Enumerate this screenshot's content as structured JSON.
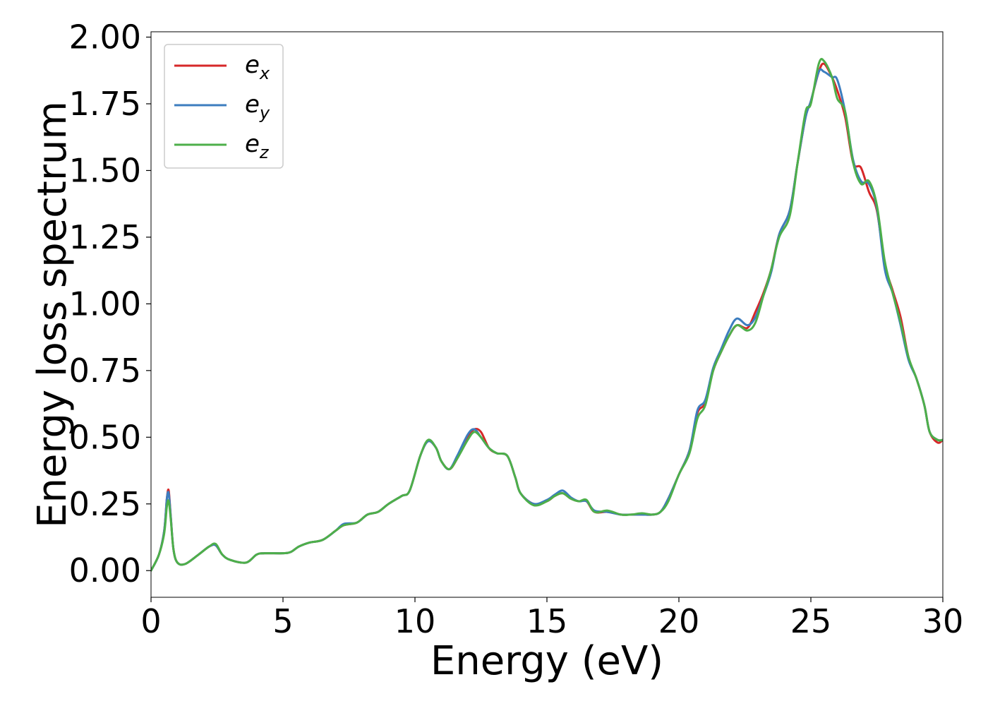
{
  "chart_data": {
    "type": "line",
    "title": "",
    "xlabel": "Energy (eV)",
    "ylabel": "Energy loss spectrum",
    "xlim": [
      0,
      30
    ],
    "ylim": [
      -0.1,
      2.02
    ],
    "xticks": [
      0,
      5,
      10,
      15,
      20,
      25,
      30
    ],
    "xtick_labels": [
      "0",
      "5",
      "10",
      "15",
      "20",
      "25",
      "30"
    ],
    "yticks": [
      0,
      0.25,
      0.5,
      0.75,
      1.0,
      1.25,
      1.5,
      1.75,
      2.0
    ],
    "ytick_labels": [
      "0.00",
      "0.25",
      "0.50",
      "0.75",
      "1.00",
      "1.25",
      "1.50",
      "1.75",
      "2.00"
    ],
    "grid": false,
    "legend_position": "top-left",
    "series": [
      {
        "name": "e_x",
        "legend_base": "e",
        "legend_sub": "x",
        "color": "#d62728",
        "x": [
          0,
          0.3,
          0.5,
          0.6,
          0.67,
          0.75,
          0.85,
          1.0,
          1.3,
          1.8,
          2.2,
          2.45,
          2.7,
          3.0,
          3.6,
          4.0,
          4.3,
          5.0,
          5.3,
          5.6,
          6.0,
          6.5,
          7.0,
          7.3,
          7.8,
          8.2,
          8.6,
          9.0,
          9.5,
          9.8,
          10.2,
          10.5,
          10.8,
          11.0,
          11.3,
          11.6,
          12.0,
          12.25,
          12.5,
          12.8,
          13.1,
          13.5,
          13.8,
          14.0,
          14.5,
          15.0,
          15.3,
          15.6,
          15.9,
          16.2,
          16.5,
          16.8,
          17.3,
          17.8,
          18.2,
          18.6,
          19.0,
          19.3,
          19.6,
          20.0,
          20.4,
          20.7,
          21.0,
          21.3,
          21.6,
          21.9,
          22.2,
          22.6,
          22.9,
          23.2,
          23.5,
          23.8,
          24.2,
          24.5,
          24.8,
          25.0,
          25.3,
          25.5,
          25.8,
          26.0,
          26.3,
          26.6,
          26.9,
          27.2,
          27.5,
          27.8,
          28.1,
          28.4,
          28.7,
          29.0,
          29.3,
          29.5,
          29.8,
          30.0
        ],
        "y": [
          0.0,
          0.06,
          0.15,
          0.27,
          0.3,
          0.2,
          0.08,
          0.03,
          0.025,
          0.06,
          0.09,
          0.095,
          0.06,
          0.04,
          0.03,
          0.06,
          0.065,
          0.065,
          0.07,
          0.09,
          0.105,
          0.115,
          0.15,
          0.17,
          0.18,
          0.21,
          0.22,
          0.25,
          0.28,
          0.3,
          0.43,
          0.485,
          0.46,
          0.41,
          0.38,
          0.42,
          0.5,
          0.53,
          0.52,
          0.46,
          0.44,
          0.43,
          0.35,
          0.29,
          0.25,
          0.26,
          0.28,
          0.29,
          0.27,
          0.26,
          0.26,
          0.22,
          0.22,
          0.21,
          0.21,
          0.21,
          0.21,
          0.22,
          0.27,
          0.36,
          0.45,
          0.59,
          0.63,
          0.75,
          0.82,
          0.88,
          0.92,
          0.91,
          0.97,
          1.04,
          1.13,
          1.26,
          1.35,
          1.53,
          1.7,
          1.76,
          1.87,
          1.9,
          1.85,
          1.8,
          1.7,
          1.53,
          1.51,
          1.42,
          1.35,
          1.15,
          1.05,
          0.95,
          0.8,
          0.72,
          0.62,
          0.52,
          0.48,
          0.49
        ]
      },
      {
        "name": "e_y",
        "legend_base": "e",
        "legend_sub": "y",
        "color": "#3c7dbf",
        "x": [
          0,
          0.3,
          0.5,
          0.6,
          0.67,
          0.75,
          0.85,
          1.0,
          1.3,
          1.8,
          2.2,
          2.45,
          2.7,
          3.0,
          3.6,
          4.0,
          4.3,
          5.0,
          5.3,
          5.6,
          6.0,
          6.5,
          7.0,
          7.3,
          7.8,
          8.2,
          8.6,
          9.0,
          9.5,
          9.8,
          10.2,
          10.5,
          10.8,
          11.0,
          11.3,
          11.6,
          12.0,
          12.25,
          12.5,
          12.8,
          13.1,
          13.5,
          13.8,
          14.0,
          14.5,
          15.0,
          15.3,
          15.6,
          15.9,
          16.2,
          16.5,
          16.8,
          17.3,
          17.8,
          18.2,
          18.6,
          19.0,
          19.3,
          19.6,
          20.0,
          20.4,
          20.7,
          21.0,
          21.3,
          21.6,
          21.9,
          22.2,
          22.6,
          22.9,
          23.2,
          23.5,
          23.8,
          24.2,
          24.5,
          24.8,
          25.0,
          25.3,
          25.5,
          25.8,
          26.0,
          26.3,
          26.6,
          26.9,
          27.2,
          27.5,
          27.8,
          28.1,
          28.4,
          28.7,
          29.0,
          29.3,
          29.5,
          29.8,
          30.0
        ],
        "y": [
          0.0,
          0.06,
          0.15,
          0.27,
          0.29,
          0.2,
          0.08,
          0.03,
          0.025,
          0.06,
          0.09,
          0.095,
          0.06,
          0.04,
          0.03,
          0.06,
          0.065,
          0.065,
          0.07,
          0.09,
          0.105,
          0.115,
          0.15,
          0.175,
          0.18,
          0.21,
          0.22,
          0.25,
          0.28,
          0.3,
          0.43,
          0.485,
          0.46,
          0.41,
          0.38,
          0.43,
          0.51,
          0.53,
          0.5,
          0.46,
          0.44,
          0.43,
          0.35,
          0.29,
          0.25,
          0.265,
          0.285,
          0.3,
          0.275,
          0.26,
          0.26,
          0.225,
          0.22,
          0.21,
          0.21,
          0.21,
          0.21,
          0.22,
          0.27,
          0.36,
          0.45,
          0.6,
          0.64,
          0.76,
          0.83,
          0.9,
          0.945,
          0.92,
          0.95,
          1.03,
          1.12,
          1.26,
          1.35,
          1.53,
          1.7,
          1.76,
          1.87,
          1.87,
          1.85,
          1.84,
          1.72,
          1.54,
          1.46,
          1.45,
          1.36,
          1.13,
          1.04,
          0.92,
          0.79,
          0.72,
          0.62,
          0.52,
          0.49,
          0.49
        ]
      },
      {
        "name": "e_z",
        "legend_base": "e",
        "legend_sub": "z",
        "color": "#4daf4a",
        "x": [
          0,
          0.3,
          0.5,
          0.6,
          0.67,
          0.75,
          0.85,
          1.0,
          1.3,
          1.8,
          2.2,
          2.45,
          2.7,
          3.0,
          3.6,
          4.0,
          4.3,
          5.0,
          5.3,
          5.6,
          6.0,
          6.5,
          7.0,
          7.3,
          7.8,
          8.2,
          8.6,
          9.0,
          9.5,
          9.8,
          10.2,
          10.5,
          10.8,
          11.0,
          11.3,
          11.6,
          12.0,
          12.25,
          12.5,
          12.8,
          13.1,
          13.5,
          13.8,
          14.0,
          14.5,
          15.0,
          15.3,
          15.6,
          15.9,
          16.2,
          16.5,
          16.8,
          17.3,
          17.8,
          18.2,
          18.6,
          19.0,
          19.3,
          19.6,
          20.0,
          20.4,
          20.7,
          21.0,
          21.3,
          21.6,
          21.9,
          22.2,
          22.6,
          22.9,
          23.2,
          23.5,
          23.8,
          24.2,
          24.5,
          24.8,
          25.0,
          25.3,
          25.5,
          25.8,
          26.0,
          26.3,
          26.6,
          26.9,
          27.2,
          27.5,
          27.8,
          28.1,
          28.4,
          28.7,
          29.0,
          29.3,
          29.5,
          29.8,
          30.0
        ],
        "y": [
          0.0,
          0.06,
          0.14,
          0.24,
          0.26,
          0.19,
          0.08,
          0.03,
          0.025,
          0.06,
          0.09,
          0.1,
          0.06,
          0.04,
          0.03,
          0.06,
          0.065,
          0.065,
          0.07,
          0.09,
          0.105,
          0.115,
          0.15,
          0.17,
          0.18,
          0.21,
          0.22,
          0.25,
          0.28,
          0.3,
          0.43,
          0.49,
          0.46,
          0.41,
          0.38,
          0.42,
          0.49,
          0.52,
          0.5,
          0.46,
          0.44,
          0.43,
          0.35,
          0.29,
          0.245,
          0.26,
          0.28,
          0.29,
          0.27,
          0.26,
          0.265,
          0.22,
          0.225,
          0.21,
          0.21,
          0.215,
          0.21,
          0.22,
          0.26,
          0.36,
          0.44,
          0.57,
          0.62,
          0.75,
          0.82,
          0.88,
          0.92,
          0.9,
          0.93,
          1.03,
          1.13,
          1.25,
          1.33,
          1.53,
          1.72,
          1.75,
          1.9,
          1.91,
          1.85,
          1.77,
          1.72,
          1.53,
          1.45,
          1.46,
          1.37,
          1.16,
          1.04,
          0.93,
          0.8,
          0.72,
          0.62,
          0.52,
          0.49,
          0.49
        ]
      }
    ]
  }
}
